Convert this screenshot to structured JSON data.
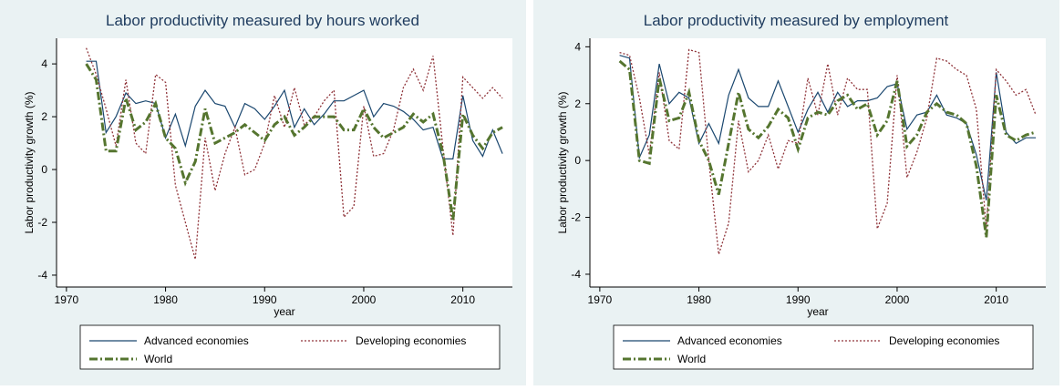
{
  "chart_data": [
    {
      "type": "line",
      "title": "Labor productivity measured by hours worked",
      "x_label": "year",
      "y_label": "Labor productivity growth (%)",
      "x": [
        1972,
        1973,
        1974,
        1975,
        1976,
        1977,
        1978,
        1979,
        1980,
        1981,
        1982,
        1983,
        1984,
        1985,
        1986,
        1987,
        1988,
        1989,
        1990,
        1991,
        1992,
        1993,
        1994,
        1995,
        1996,
        1997,
        1998,
        1999,
        2000,
        2001,
        2002,
        2003,
        2004,
        2005,
        2006,
        2007,
        2008,
        2009,
        2010,
        2011,
        2012,
        2013,
        2014
      ],
      "xlim": [
        1969,
        2015
      ],
      "xticks": [
        1970,
        1980,
        1990,
        2000,
        2010
      ],
      "ylim": [
        -4.45,
        4.97
      ],
      "yticks": [
        -4,
        -2,
        0,
        2,
        4
      ],
      "series": [
        {
          "name": "Advanced economies",
          "color": "#1a476f",
          "dash": "solid",
          "values": [
            4.1,
            4.1,
            1.4,
            2.0,
            2.9,
            2.5,
            2.6,
            2.5,
            1.2,
            2.1,
            0.9,
            2.4,
            3.0,
            2.5,
            2.4,
            1.6,
            2.5,
            2.3,
            1.9,
            2.4,
            3.0,
            1.6,
            2.3,
            1.7,
            2.1,
            2.6,
            2.6,
            2.8,
            3.0,
            2.0,
            2.5,
            2.4,
            2.2,
            1.9,
            1.5,
            1.6,
            0.4,
            0.4,
            2.8,
            1.1,
            0.5,
            1.5,
            0.6
          ]
        },
        {
          "name": "Developing economies",
          "color": "#90353b",
          "dash": "dot",
          "values": [
            4.6,
            3.6,
            2.3,
            0.9,
            3.4,
            1.0,
            0.6,
            3.6,
            3.3,
            -0.6,
            -2.0,
            -3.4,
            1.2,
            -0.8,
            0.6,
            1.6,
            -0.2,
            0.0,
            1.0,
            2.8,
            1.6,
            3.1,
            1.7,
            2.0,
            2.6,
            3.0,
            -1.8,
            -1.4,
            2.4,
            0.5,
            0.6,
            1.5,
            3.1,
            3.8,
            3.0,
            4.3,
            0.8,
            -2.5,
            3.5,
            3.1,
            2.7,
            3.1,
            2.7
          ]
        },
        {
          "name": "World",
          "color": "#55752f",
          "dash": "dashdot",
          "values": [
            4.0,
            3.4,
            0.7,
            0.7,
            2.7,
            1.5,
            1.8,
            2.5,
            1.2,
            0.8,
            -0.5,
            0.3,
            2.3,
            1.0,
            1.2,
            1.4,
            1.7,
            1.4,
            1.1,
            1.7,
            2.0,
            1.3,
            1.6,
            2.0,
            2.0,
            2.0,
            1.5,
            1.5,
            2.3,
            1.6,
            1.2,
            1.4,
            1.6,
            2.1,
            1.8,
            2.1,
            0.6,
            -1.9,
            2.1,
            1.3,
            0.8,
            1.4,
            1.6
          ]
        }
      ]
    },
    {
      "type": "line",
      "title": "Labor productivity measured by employment",
      "x_label": "year",
      "y_label": "Labor productivity growth (%)",
      "x": [
        1972,
        1973,
        1974,
        1975,
        1976,
        1977,
        1978,
        1979,
        1980,
        1981,
        1982,
        1983,
        1984,
        1985,
        1986,
        1987,
        1988,
        1989,
        1990,
        1991,
        1992,
        1993,
        1994,
        1995,
        1996,
        1997,
        1998,
        1999,
        2000,
        2001,
        2002,
        2003,
        2004,
        2005,
        2006,
        2007,
        2008,
        2009,
        2010,
        2011,
        2012,
        2013,
        2014
      ],
      "xlim": [
        1969,
        2015
      ],
      "xticks": [
        1970,
        1980,
        1990,
        2000,
        2010
      ],
      "ylim": [
        -4.45,
        4.3
      ],
      "yticks": [
        -4,
        -2,
        0,
        2,
        4
      ],
      "series": [
        {
          "name": "Advanced economies",
          "color": "#1a476f",
          "dash": "solid",
          "values": [
            3.7,
            3.6,
            0.1,
            0.9,
            3.4,
            2.0,
            2.4,
            2.2,
            0.6,
            1.3,
            0.6,
            2.3,
            3.2,
            2.2,
            1.9,
            1.9,
            2.8,
            1.9,
            1.0,
            1.8,
            2.4,
            1.7,
            2.4,
            1.9,
            2.1,
            2.1,
            2.2,
            2.6,
            2.7,
            1.1,
            1.6,
            1.7,
            2.3,
            1.6,
            1.5,
            1.3,
            0.2,
            -1.4,
            3.1,
            1.0,
            0.6,
            0.8,
            0.8
          ]
        },
        {
          "name": "Developing economies",
          "color": "#90353b",
          "dash": "dot",
          "values": [
            3.8,
            3.7,
            2.2,
            0.2,
            3.1,
            0.7,
            0.4,
            3.9,
            3.8,
            0.0,
            -3.3,
            -2.2,
            1.4,
            -0.4,
            0.0,
            0.9,
            -0.3,
            0.7,
            0.6,
            2.9,
            1.6,
            3.4,
            1.6,
            2.9,
            2.5,
            2.5,
            -2.4,
            -1.5,
            3.0,
            -0.6,
            0.3,
            1.5,
            3.6,
            3.5,
            3.2,
            3.0,
            1.8,
            -2.4,
            3.2,
            2.8,
            2.3,
            2.5,
            1.6
          ]
        },
        {
          "name": "World",
          "color": "#55752f",
          "dash": "dashdot",
          "values": [
            3.5,
            3.2,
            0.0,
            -0.1,
            2.9,
            1.4,
            1.5,
            2.4,
            0.7,
            0.0,
            -1.2,
            0.6,
            2.4,
            1.1,
            0.8,
            1.2,
            1.8,
            1.5,
            0.4,
            1.5,
            1.7,
            1.6,
            2.1,
            2.3,
            1.8,
            2.0,
            0.9,
            1.4,
            2.8,
            0.5,
            0.9,
            1.7,
            2.0,
            1.7,
            1.6,
            1.3,
            -0.2,
            -2.7,
            2.3,
            0.9,
            0.7,
            0.9,
            1.0
          ]
        }
      ]
    }
  ]
}
